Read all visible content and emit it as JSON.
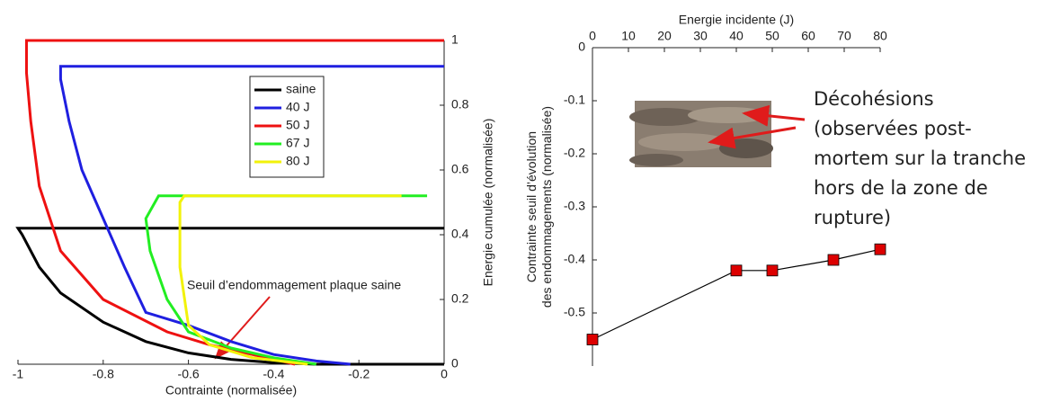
{
  "chart_data": [
    {
      "type": "line",
      "xlabel": "Contrainte (normalisée)",
      "ylabel": "Energie cumulée (normalisée)",
      "x_axis_position": "bottom",
      "y_axis_position": "right",
      "xlim": [
        -1,
        0
      ],
      "ylim": [
        0,
        1
      ],
      "xticks": [
        -1,
        -0.8,
        -0.6,
        -0.4,
        -0.2,
        0
      ],
      "yticks": [
        0,
        0.2,
        0.4,
        0.6,
        0.8,
        1
      ],
      "annotation": "Seuil d’endommagement plaque saine",
      "series": [
        {
          "name": "saine",
          "color": "#000000",
          "x": [
            0,
            -0.3,
            -0.4,
            -0.5,
            -0.6,
            -0.7,
            -0.8,
            -0.9,
            -0.95,
            -0.99,
            -1,
            0
          ],
          "values": [
            0,
            0,
            0.005,
            0.015,
            0.035,
            0.07,
            0.13,
            0.22,
            0.3,
            0.4,
            0.42,
            0.42
          ]
        },
        {
          "name": "40 J",
          "color": "#1f1fe0",
          "x": [
            -0.22,
            -0.3,
            -0.4,
            -0.5,
            -0.6,
            -0.7,
            -0.75,
            -0.8,
            -0.85,
            -0.88,
            -0.9,
            -0.9,
            0
          ],
          "values": [
            0,
            0.01,
            0.03,
            0.07,
            0.12,
            0.16,
            0.3,
            0.45,
            0.6,
            0.75,
            0.88,
            0.92,
            0.92
          ]
        },
        {
          "name": "50 J",
          "color": "#ee1111",
          "x": [
            -0.35,
            -0.45,
            -0.55,
            -0.65,
            -0.8,
            -0.9,
            -0.95,
            -0.97,
            -0.98,
            -0.98,
            0
          ],
          "values": [
            0,
            0.03,
            0.06,
            0.1,
            0.2,
            0.35,
            0.55,
            0.75,
            0.9,
            1,
            1
          ]
        },
        {
          "name": "67 J",
          "color": "#22ee22",
          "x": [
            -0.3,
            -0.4,
            -0.5,
            -0.6,
            -0.65,
            -0.69,
            -0.7,
            -0.67,
            -0.04
          ],
          "values": [
            0,
            0.02,
            0.05,
            0.1,
            0.2,
            0.35,
            0.45,
            0.52,
            0.52
          ]
        },
        {
          "name": "80 J",
          "color": "#f2f20a",
          "x": [
            -0.32,
            -0.45,
            -0.55,
            -0.6,
            -0.62,
            -0.62,
            -0.61,
            -0.1
          ],
          "values": [
            0,
            0.02,
            0.06,
            0.12,
            0.3,
            0.5,
            0.52,
            0.52
          ]
        }
      ]
    },
    {
      "type": "line",
      "xlabel": "Energie incidente (J)",
      "ylabel": [
        "Contrainte seuil d’évolution",
        "des endommagements (normalisée)"
      ],
      "x_axis_position": "top",
      "y_axis_position": "left",
      "xlim": [
        0,
        80
      ],
      "ylim": [
        -0.6,
        0
      ],
      "xticks": [
        0,
        10,
        20,
        30,
        40,
        50,
        60,
        70,
        80
      ],
      "yticks": [
        -0.5,
        -0.4,
        -0.3,
        -0.2,
        -0.1,
        0
      ],
      "annotation": "Décohésions (observées post-mortem sur la tranche hors de la zone de rupture)",
      "series": [
        {
          "color": "#dd0000",
          "x": [
            0,
            40,
            50,
            67,
            80
          ],
          "values": [
            -0.55,
            -0.42,
            -0.42,
            -0.4,
            -0.38
          ]
        }
      ]
    }
  ]
}
